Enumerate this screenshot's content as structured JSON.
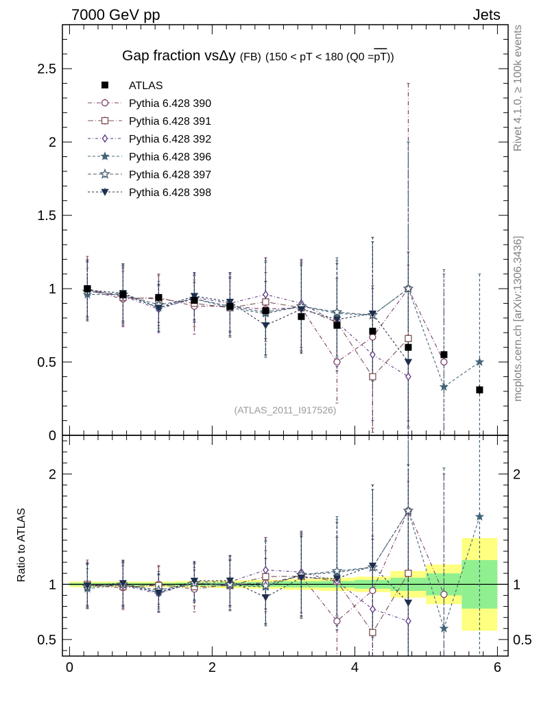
{
  "header": {
    "left": "7000 GeV pp",
    "right": "Jets"
  },
  "side_labels": {
    "top": "Rivet 4.1.0, ≥ 100k events",
    "bottom": "mcplots.cern.ch [arXiv:1306.3436]"
  },
  "chart_data": {
    "type": "scatter",
    "title": "Gap fraction vsΔy",
    "title_fb": "(FB)",
    "title_cut": "(150 < pT < 180 (Q0 =",
    "title_q0": "pT",
    "title_close": "))",
    "watermark": "(ATLAS_2011_I917526)",
    "x_ticks": [
      "0",
      "2",
      "4",
      "6"
    ],
    "xlim": [
      -0.1,
      6.15
    ],
    "main": {
      "ylim": [
        0,
        2.8
      ],
      "y_ticks": [
        "0",
        "0.5",
        "1",
        "1.5",
        "2",
        "2.5"
      ]
    },
    "ratio": {
      "ylabel": "Ratio to ATLAS",
      "ylim": [
        0.35,
        2.35
      ],
      "y_ticks": [
        "0.5",
        "1",
        "2"
      ]
    },
    "x": [
      0.25,
      0.75,
      1.25,
      1.75,
      2.25,
      2.75,
      3.25,
      3.75,
      4.25,
      4.75,
      5.25,
      5.75
    ],
    "data": {
      "name": "ATLAS",
      "values": [
        1.0,
        0.96,
        0.94,
        0.92,
        0.88,
        0.85,
        0.81,
        0.75,
        0.71,
        0.6,
        0.55,
        0.31
      ],
      "errors": [
        0.01,
        0.01,
        0.01,
        0.01,
        0.01,
        0.015,
        0.02,
        0.02,
        0.02,
        0.02,
        0.03,
        0.03
      ],
      "band_outer": [
        0.025,
        0.025,
        0.025,
        0.03,
        0.035,
        0.04,
        0.05,
        0.06,
        0.07,
        0.12,
        0.18,
        0.42
      ],
      "band_inner": [
        0.012,
        0.012,
        0.012,
        0.015,
        0.018,
        0.022,
        0.028,
        0.03,
        0.04,
        0.06,
        0.1,
        0.22
      ]
    },
    "series": [
      {
        "name": "Pythia 6.428 390",
        "color": "#7a3d6a",
        "marker": "circle",
        "dash": "6,3,1,3",
        "values": [
          0.99,
          0.93,
          0.94,
          0.88,
          0.88,
          0.86,
          0.87,
          0.5,
          0.67,
          1.0,
          0.5,
          null
        ],
        "err_lo": [
          0.2,
          0.19,
          0.19,
          0.19,
          0.2,
          0.22,
          0.3,
          0.28,
          0.65,
          1.1,
          0.55,
          0
        ],
        "err_hi": [
          0.21,
          0.19,
          0.16,
          0.16,
          0.2,
          0.25,
          0.3,
          0.25,
          0.35,
          1.4,
          0.6,
          0
        ]
      },
      {
        "name": "Pythia 6.428 391",
        "color": "#7b4f52",
        "marker": "square",
        "dash": "8,3,1,3",
        "values": [
          1.0,
          0.94,
          0.93,
          0.9,
          0.87,
          0.91,
          0.87,
          0.77,
          0.4,
          0.66,
          null,
          null
        ],
        "err_lo": [
          0.2,
          0.19,
          0.16,
          0.16,
          0.2,
          0.25,
          0.3,
          0.28,
          0.35,
          0.6,
          0,
          0
        ],
        "err_hi": [
          0.22,
          0.2,
          0.16,
          0.16,
          0.2,
          0.3,
          0.32,
          0.3,
          0.4,
          0.5,
          0,
          0
        ]
      },
      {
        "name": "Pythia 6.428 392",
        "color": "#5a3580",
        "marker": "diamond",
        "dash": "4,3,1,3",
        "values": [
          0.99,
          0.95,
          0.86,
          0.94,
          0.9,
          0.96,
          0.9,
          0.77,
          0.55,
          0.4,
          null,
          null
        ],
        "err_lo": [
          0.2,
          0.19,
          0.16,
          0.16,
          0.2,
          0.3,
          0.3,
          0.3,
          0.45,
          0.45,
          0,
          0
        ],
        "err_hi": [
          0.2,
          0.2,
          0.16,
          0.16,
          0.2,
          0.25,
          0.3,
          0.3,
          0.45,
          0.6,
          0,
          0
        ]
      },
      {
        "name": "Pythia 6.428 396",
        "color": "#436378",
        "marker": "star",
        "dash": "4,3",
        "values": [
          0.96,
          0.96,
          0.87,
          0.93,
          0.87,
          0.83,
          0.88,
          0.83,
          0.82,
          1.0,
          0.33,
          0.5
        ],
        "err_lo": [
          0.18,
          0.19,
          0.16,
          0.16,
          0.2,
          0.3,
          0.3,
          0.3,
          0.45,
          0.9,
          0.35,
          0.55
        ],
        "err_hi": [
          0.18,
          0.2,
          0.16,
          0.16,
          0.2,
          0.35,
          0.3,
          0.38,
          0.5,
          1.0,
          0.8,
          0.6
        ]
      },
      {
        "name": "Pythia 6.428 397",
        "color": "#455c6e",
        "marker": "star-open",
        "dash": "5,3",
        "values": [
          0.98,
          0.96,
          0.89,
          0.93,
          0.88,
          0.84,
          0.88,
          0.84,
          0.82,
          1.0,
          null,
          null
        ],
        "err_lo": [
          0.2,
          0.19,
          0.16,
          0.16,
          0.2,
          0.3,
          0.3,
          0.3,
          0.45,
          0.9,
          0,
          0
        ],
        "err_hi": [
          0.2,
          0.2,
          0.16,
          0.16,
          0.2,
          0.35,
          0.3,
          0.35,
          0.5,
          1.0,
          0,
          0
        ]
      },
      {
        "name": "Pythia 6.428 398",
        "color": "#1e2e4d",
        "marker": "triangle-down",
        "dash": "3,3",
        "values": [
          0.99,
          0.97,
          0.87,
          0.95,
          0.91,
          0.75,
          0.86,
          0.79,
          0.83,
          0.5,
          null,
          null
        ],
        "err_lo": [
          0.18,
          0.19,
          0.16,
          0.16,
          0.2,
          0.2,
          0.3,
          0.35,
          0.45,
          0.45,
          0,
          0
        ],
        "err_hi": [
          0.2,
          0.2,
          0.16,
          0.16,
          0.2,
          0.3,
          0.3,
          0.38,
          0.52,
          0.75,
          0,
          0
        ]
      }
    ]
  }
}
